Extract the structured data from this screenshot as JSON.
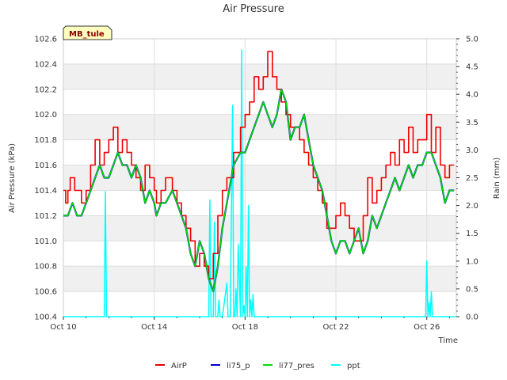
{
  "chart_data": {
    "type": "line",
    "title": "Air Pressure",
    "station_label": "MB_tule",
    "xlabel": "Time",
    "ylabel": "Air Pressure (kPa)",
    "y2label": "Rain (mm)",
    "xlim": [
      0,
      17.3
    ],
    "ylim": [
      100.4,
      102.6
    ],
    "y2lim": [
      0.0,
      5.0
    ],
    "x_ticks": [
      {
        "value": 0,
        "label": "Oct 10"
      },
      {
        "value": 4,
        "label": "Oct 14"
      },
      {
        "value": 8,
        "label": "Oct 18"
      },
      {
        "value": 12,
        "label": "Oct 22"
      },
      {
        "value": 16,
        "label": "Oct 26"
      }
    ],
    "y_ticks": [
      "100.4",
      "100.6",
      "100.8",
      "101.0",
      "101.2",
      "101.4",
      "101.6",
      "101.8",
      "102.0",
      "102.2",
      "102.4",
      "102.6"
    ],
    "y2_ticks": [
      "0.0",
      "0.5",
      "1.0",
      "1.5",
      "2.0",
      "2.5",
      "3.0",
      "3.5",
      "4.0",
      "4.5",
      "5.0"
    ],
    "series": [
      {
        "name": "AirP",
        "color": "#ee0000",
        "axis": "left",
        "step": true,
        "x": [
          0,
          0.1,
          0.2,
          0.3,
          0.5,
          0.8,
          1.0,
          1.2,
          1.4,
          1.6,
          1.8,
          2.0,
          2.2,
          2.4,
          2.6,
          2.8,
          3.0,
          3.2,
          3.4,
          3.6,
          3.8,
          4.0,
          4.1,
          4.3,
          4.5,
          4.8,
          5.0,
          5.2,
          5.4,
          5.6,
          5.8,
          6.0,
          6.2,
          6.4,
          6.6,
          6.8,
          7.0,
          7.2,
          7.5,
          7.8,
          8.0,
          8.2,
          8.4,
          8.6,
          8.8,
          9.0,
          9.2,
          9.4,
          9.6,
          9.8,
          10.0,
          10.2,
          10.4,
          10.6,
          10.8,
          11.0,
          11.2,
          11.4,
          11.6,
          11.8,
          12.0,
          12.2,
          12.4,
          12.6,
          12.8,
          13.0,
          13.2,
          13.4,
          13.6,
          13.8,
          14.0,
          14.2,
          14.4,
          14.6,
          14.8,
          15.0,
          15.2,
          15.4,
          15.6,
          15.8,
          16.0,
          16.2,
          16.4,
          16.6,
          16.8,
          17.0,
          17.2
        ],
        "y": [
          101.4,
          101.3,
          101.4,
          101.5,
          101.4,
          101.3,
          101.4,
          101.6,
          101.8,
          101.6,
          101.7,
          101.8,
          101.9,
          101.7,
          101.8,
          101.7,
          101.6,
          101.5,
          101.4,
          101.6,
          101.5,
          101.4,
          101.3,
          101.4,
          101.5,
          101.4,
          101.3,
          101.2,
          101.1,
          101.0,
          100.8,
          100.9,
          100.8,
          100.7,
          100.9,
          101.2,
          101.4,
          101.5,
          101.7,
          101.9,
          102.0,
          102.1,
          102.3,
          102.2,
          102.3,
          102.5,
          102.3,
          102.2,
          102.1,
          102.0,
          101.9,
          101.9,
          101.8,
          101.7,
          101.6,
          101.5,
          101.4,
          101.3,
          101.1,
          101.1,
          101.2,
          101.3,
          101.2,
          101.1,
          101.0,
          101.0,
          101.2,
          101.5,
          101.3,
          101.4,
          101.5,
          101.6,
          101.7,
          101.6,
          101.8,
          101.7,
          101.9,
          101.7,
          101.8,
          101.8,
          102.0,
          101.7,
          101.9,
          101.6,
          101.5,
          101.6,
          101.6
        ]
      },
      {
        "name": "li75_p",
        "color": "#0000cc",
        "axis": "left",
        "step": false,
        "x": [
          0,
          0.2,
          0.4,
          0.6,
          0.8,
          1.0,
          1.2,
          1.4,
          1.6,
          1.8,
          2.0,
          2.2,
          2.4,
          2.6,
          2.8,
          3.0,
          3.2,
          3.4,
          3.6,
          3.8,
          4.0,
          4.1,
          4.3,
          4.5,
          4.8,
          5.0,
          5.2,
          5.4,
          5.6,
          5.8,
          6.0,
          6.2,
          6.4,
          6.6,
          6.8,
          7.0,
          7.2,
          7.5,
          7.8,
          8.0,
          8.2,
          8.4,
          8.6,
          8.8,
          9.0,
          9.2,
          9.4,
          9.6,
          9.8,
          10.0,
          10.2,
          10.4,
          10.6,
          10.8,
          11.0,
          11.2,
          11.4,
          11.6,
          11.8,
          12.0,
          12.2,
          12.4,
          12.6,
          12.8,
          13.0,
          13.2,
          13.4,
          13.6,
          13.8,
          14.0,
          14.2,
          14.4,
          14.6,
          14.8,
          15.0,
          15.2,
          15.4,
          15.6,
          15.8,
          16.0,
          16.2,
          16.4,
          16.6,
          16.8,
          17.0,
          17.2
        ],
        "y": [
          101.2,
          101.2,
          101.3,
          101.2,
          101.2,
          101.3,
          101.4,
          101.5,
          101.6,
          101.5,
          101.5,
          101.6,
          101.7,
          101.6,
          101.6,
          101.5,
          101.6,
          101.5,
          101.3,
          101.4,
          101.3,
          101.2,
          101.3,
          101.3,
          101.4,
          101.3,
          101.2,
          101.1,
          100.9,
          100.8,
          101.0,
          100.9,
          100.7,
          100.6,
          100.8,
          101.1,
          101.3,
          101.6,
          101.7,
          101.7,
          101.8,
          101.9,
          102.0,
          102.1,
          102.0,
          101.9,
          102.0,
          102.2,
          102.1,
          101.8,
          101.9,
          101.9,
          102.0,
          101.8,
          101.6,
          101.5,
          101.4,
          101.2,
          101.0,
          100.9,
          101.0,
          101.0,
          100.9,
          101.0,
          101.1,
          100.9,
          101.0,
          101.2,
          101.1,
          101.2,
          101.3,
          101.4,
          101.5,
          101.4,
          101.5,
          101.6,
          101.5,
          101.6,
          101.6,
          101.7,
          101.7,
          101.6,
          101.5,
          101.3,
          101.4,
          101.4
        ]
      },
      {
        "name": "li77_pres",
        "color": "#00dd00",
        "axis": "left",
        "step": false,
        "x": [
          0,
          0.2,
          0.4,
          0.6,
          0.8,
          1.0,
          1.2,
          1.4,
          1.6,
          1.8,
          2.0,
          2.2,
          2.4,
          2.6,
          2.8,
          3.0,
          3.2,
          3.4,
          3.6,
          3.8,
          4.0,
          4.1,
          4.3,
          4.5,
          4.8,
          5.0,
          5.2,
          5.4,
          5.6,
          5.8,
          6.0,
          6.2,
          6.4,
          6.6,
          6.8,
          7.0,
          7.2,
          7.5,
          7.8,
          8.0,
          8.2,
          8.4,
          8.6,
          8.8,
          9.0,
          9.2,
          9.4,
          9.6,
          9.8,
          10.0,
          10.2,
          10.4,
          10.6,
          10.8,
          11.0,
          11.2,
          11.4,
          11.6,
          11.8,
          12.0,
          12.2,
          12.4,
          12.6,
          12.8,
          13.0,
          13.2,
          13.4,
          13.6,
          13.8,
          14.0,
          14.2,
          14.4,
          14.6,
          14.8,
          15.0,
          15.2,
          15.4,
          15.6,
          15.8,
          16.0,
          16.2,
          16.4,
          16.6,
          16.8,
          17.0,
          17.2
        ],
        "y": [
          101.2,
          101.2,
          101.3,
          101.2,
          101.2,
          101.3,
          101.4,
          101.5,
          101.6,
          101.5,
          101.5,
          101.6,
          101.7,
          101.6,
          101.6,
          101.5,
          101.6,
          101.5,
          101.3,
          101.4,
          101.3,
          101.2,
          101.3,
          101.3,
          101.4,
          101.3,
          101.2,
          101.1,
          100.9,
          100.8,
          101.0,
          100.9,
          100.7,
          100.6,
          100.8,
          101.1,
          101.3,
          101.6,
          101.7,
          101.7,
          101.8,
          101.9,
          102.0,
          102.1,
          102.0,
          101.9,
          102.0,
          102.2,
          102.1,
          101.8,
          101.9,
          101.9,
          102.0,
          101.8,
          101.6,
          101.5,
          101.4,
          101.2,
          101.0,
          100.9,
          101.0,
          101.0,
          100.9,
          101.0,
          101.1,
          100.9,
          101.0,
          101.2,
          101.1,
          101.2,
          101.3,
          101.4,
          101.5,
          101.4,
          101.5,
          101.6,
          101.5,
          101.6,
          101.6,
          101.7,
          101.7,
          101.6,
          101.5,
          101.3,
          101.4,
          101.4
        ]
      },
      {
        "name": "ppt",
        "color": "#00ffff",
        "axis": "right",
        "step": false,
        "x": [
          0,
          1.8,
          1.85,
          1.9,
          1.95,
          2.0,
          6.4,
          6.45,
          6.5,
          6.6,
          6.65,
          6.7,
          6.8,
          6.85,
          6.9,
          6.95,
          7.0,
          7.2,
          7.25,
          7.3,
          7.35,
          7.45,
          7.5,
          7.55,
          7.6,
          7.65,
          7.7,
          7.8,
          7.85,
          7.9,
          7.95,
          8.0,
          8.05,
          8.1,
          8.15,
          8.2,
          8.25,
          8.3,
          8.35,
          8.4,
          8.5,
          15.9,
          15.95,
          16.0,
          16.05,
          16.1,
          16.15,
          16.2,
          16.25,
          16.3,
          17.3
        ],
        "y": [
          0,
          0,
          2.25,
          0,
          0,
          0,
          0,
          2.1,
          0,
          0,
          1.7,
          0,
          0,
          0.3,
          0,
          0,
          0,
          0.6,
          0,
          0,
          0,
          3.8,
          0,
          0,
          0.5,
          0,
          1.3,
          0,
          4.8,
          0,
          0.2,
          0,
          0.9,
          0,
          2.0,
          0,
          0.3,
          0,
          0.4,
          0,
          0,
          0,
          0,
          1.0,
          0,
          0.25,
          0,
          0.45,
          0,
          0,
          0
        ]
      }
    ]
  }
}
